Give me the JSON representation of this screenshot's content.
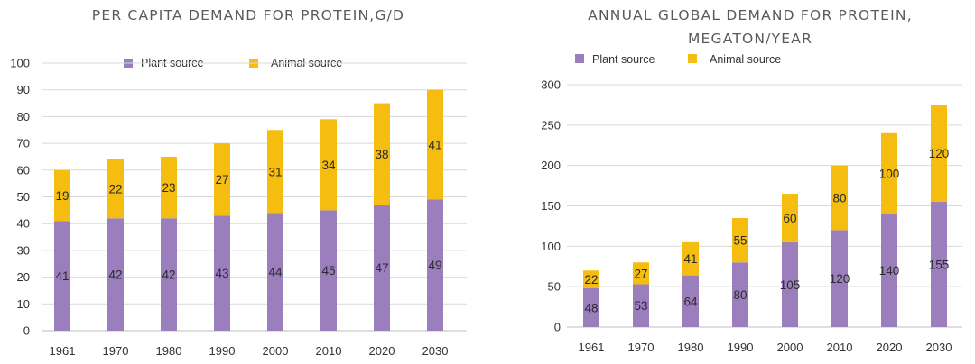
{
  "chart_data": [
    {
      "type": "bar",
      "stacked": true,
      "title": "PER CAPITA DEMAND FOR PROTEIN,G/D",
      "categories": [
        "1961",
        "1970",
        "1980",
        "1990",
        "2000",
        "2010",
        "2020",
        "2030"
      ],
      "series": [
        {
          "name": "Plant source",
          "values": [
            41,
            42,
            42,
            43,
            44,
            45,
            47,
            49
          ]
        },
        {
          "name": "Animal source",
          "values": [
            19,
            22,
            23,
            27,
            31,
            34,
            38,
            41
          ]
        }
      ],
      "ylim": [
        0,
        100
      ],
      "yticks": [
        0,
        10,
        20,
        30,
        40,
        50,
        60,
        70,
        80,
        90,
        100
      ],
      "grid": true,
      "legend": "top-center"
    },
    {
      "type": "bar",
      "stacked": true,
      "title": "ANNUAL GLOBAL DEMAND FOR PROTEIN, MEGATON/YEAR",
      "title_lines": [
        "ANNUAL GLOBAL DEMAND FOR PROTEIN,",
        "MEGATON/YEAR"
      ],
      "categories": [
        "1961",
        "1970",
        "1980",
        "1990",
        "2000",
        "2010",
        "2020",
        "2030"
      ],
      "series": [
        {
          "name": "Plant source",
          "values": [
            48,
            53,
            64,
            80,
            105,
            120,
            140,
            155
          ]
        },
        {
          "name": "Animal source",
          "values": [
            22,
            27,
            41,
            55,
            60,
            80,
            100,
            120
          ]
        }
      ],
      "ylim": [
        0,
        300
      ],
      "yticks": [
        0,
        50,
        100,
        150,
        200,
        250,
        300
      ],
      "grid": true,
      "legend": "top-left"
    }
  ],
  "colors": {
    "plant": "#9b7fbd",
    "animal": "#f5bd0f"
  }
}
